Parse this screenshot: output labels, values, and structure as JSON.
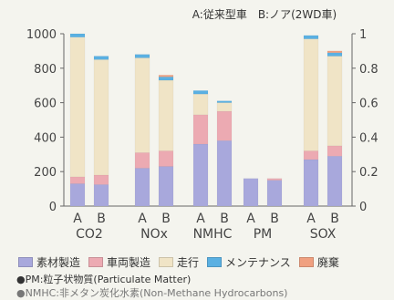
{
  "subtitle": "A:従来型車　B:ノア(2WD車)",
  "notes": [
    "●PM:粒子状物質(Particulate Matter)",
    "●NMHC:非メタン炭化水素(Non-Methane Hydrocarbons)"
  ],
  "chart_data": {
    "type": "bar",
    "stacked": true,
    "title": "",
    "subtitle": "A:従来型車　B:ノア(2WD車)",
    "xlabel": "",
    "ylabel": "",
    "left_axis": {
      "ylim": [
        0,
        1000
      ],
      "ticks": [
        "0",
        "200",
        "400",
        "600",
        "800",
        "1000"
      ]
    },
    "right_axis": {
      "ylim": [
        0,
        1
      ],
      "ticks": [
        "0",
        "0.2",
        "0.4",
        "0.6",
        "0.8",
        "1"
      ]
    },
    "grid": false,
    "legend_position": "bottom",
    "groups": [
      {
        "label": "CO2",
        "bars": [
          "A",
          "B"
        ],
        "axis": "left"
      },
      {
        "label": "NOx",
        "bars": [
          "A",
          "B"
        ],
        "axis": "right"
      },
      {
        "label": "NMHC",
        "bars": [
          "A",
          "B"
        ],
        "axis": "right"
      },
      {
        "label": "PM",
        "bars": [
          "A",
          "B"
        ],
        "axis": "right"
      },
      {
        "label": "SOX",
        "bars": [
          "A",
          "B"
        ],
        "axis": "right"
      }
    ],
    "categories": [
      "CO2-A",
      "CO2-B",
      "NOx-A",
      "NOx-B",
      "NMHC-A",
      "NMHC-B",
      "PM-A",
      "PM-B",
      "SOX-A",
      "SOX-B"
    ],
    "series": [
      {
        "name": "素材製造",
        "color": "#a8a8dc",
        "values": [
          130,
          125,
          0.22,
          0.23,
          0.36,
          0.38,
          0.16,
          0.15,
          0.27,
          0.29
        ]
      },
      {
        "name": "車両製造",
        "color": "#ecaab2",
        "values": [
          40,
          55,
          0.09,
          0.09,
          0.17,
          0.17,
          0.0,
          0.01,
          0.05,
          0.06
        ]
      },
      {
        "name": "走行",
        "color": "#f0e4c6",
        "values": [
          810,
          670,
          0.55,
          0.41,
          0.12,
          0.05,
          0.0,
          0.0,
          0.65,
          0.52
        ]
      },
      {
        "name": "メンテナンス",
        "color": "#5ab0e2",
        "values": [
          20,
          20,
          0.02,
          0.02,
          0.02,
          0.01,
          0.0,
          0.0,
          0.02,
          0.02
        ]
      },
      {
        "name": "廃棄",
        "color": "#f0a080",
        "values": [
          0,
          0,
          0.0,
          0.01,
          0.0,
          0.0,
          0.0,
          0.0,
          0.0,
          0.01
        ]
      }
    ]
  }
}
